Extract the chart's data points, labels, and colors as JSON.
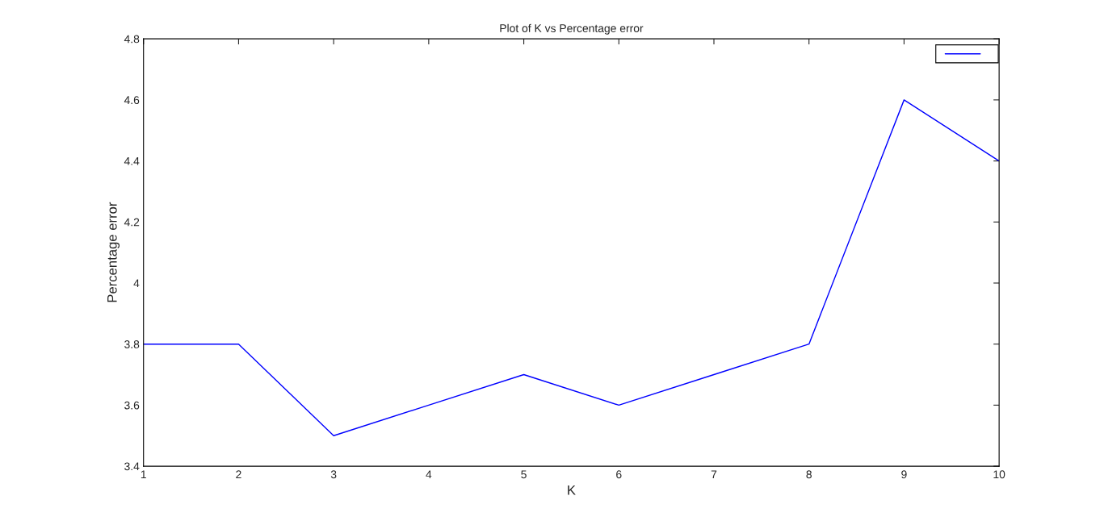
{
  "chart_data": {
    "type": "line",
    "title": "Plot of K vs Percentage error",
    "xlabel": "K",
    "ylabel": "Percentage error",
    "x": [
      1,
      2,
      3,
      4,
      5,
      6,
      7,
      8,
      9,
      10
    ],
    "series": [
      {
        "color": "#0000ff",
        "values": [
          3.8,
          3.8,
          3.5,
          3.6,
          3.7,
          3.6,
          3.7,
          3.8,
          4.6,
          4.4
        ]
      }
    ],
    "xlim": [
      1,
      10
    ],
    "xticks": [
      1,
      2,
      3,
      4,
      5,
      6,
      7,
      8,
      9,
      10
    ],
    "ylim": [
      3.4,
      4.8
    ],
    "yticks": [
      3.4,
      3.6,
      3.8,
      4,
      4.2,
      4.4,
      4.6,
      4.8
    ],
    "grid": false
  }
}
